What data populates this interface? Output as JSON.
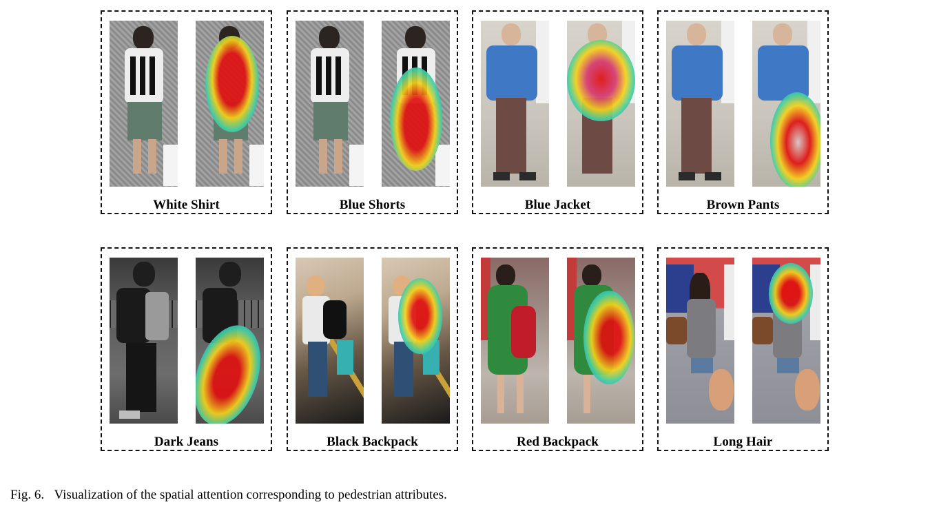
{
  "panels": [
    {
      "label": "White Shirt",
      "scene": "gray-street",
      "person": "white-shirt",
      "heat": "torso"
    },
    {
      "label": "Blue Shorts",
      "scene": "gray-street",
      "person": "white-shirt",
      "heat": "legs"
    },
    {
      "label": "Blue Jacket",
      "scene": "light-street",
      "person": "blue-jacket",
      "heat": "torso-wide"
    },
    {
      "label": "Brown Pants",
      "scene": "light-street",
      "person": "blue-jacket",
      "heat": "lower-right"
    },
    {
      "label": "Dark Jeans",
      "scene": "dark-fence",
      "person": "dark-backpack",
      "heat": "legs-dark"
    },
    {
      "label": "Black Backpack",
      "scene": "escalator",
      "person": "escalator-person",
      "heat": "backpack"
    },
    {
      "label": "Red Backpack",
      "scene": "crowd",
      "person": "green-dress",
      "heat": "red-backpack"
    },
    {
      "label": "Long Hair",
      "scene": "train",
      "person": "long-hair",
      "heat": "head"
    }
  ],
  "caption": {
    "number": "Fig. 6.",
    "text": "Visualization of the spatial attention corresponding to pedestrian attributes."
  },
  "colors": {
    "heat_core": "#e01010",
    "heat_mid": "#f5d21a",
    "heat_outer": "#1fa0e0"
  }
}
